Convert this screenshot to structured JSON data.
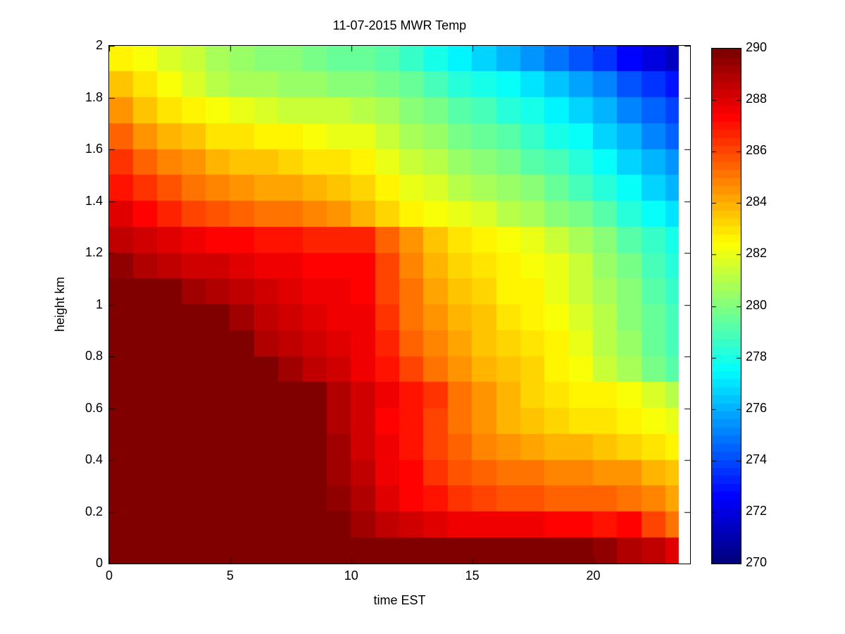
{
  "figure": {
    "background": "#ffffff",
    "text_color": "#000000",
    "axis_color": "#000000"
  },
  "chart_data": {
    "type": "heatmap",
    "title": "11-07-2015 MWR Temp",
    "xlabel": "time EST",
    "ylabel": "height km",
    "x_range": [
      0,
      24
    ],
    "x_data_end": 23.5,
    "y_range": [
      0,
      2
    ],
    "xticks": [
      0,
      5,
      10,
      15,
      20
    ],
    "xtick_labels": [
      "0",
      "5",
      "10",
      "15",
      "20"
    ],
    "yticks": [
      0,
      0.2,
      0.4,
      0.6,
      0.8,
      1,
      1.2,
      1.4,
      1.6,
      1.8,
      2
    ],
    "ytick_labels": [
      "0",
      "0.2",
      "0.4",
      "0.6",
      "0.8",
      "1",
      "1.2",
      "1.4",
      "1.6",
      "1.8",
      "2"
    ],
    "grid_lines": false,
    "colorbar": {
      "min": 270,
      "max": 290,
      "ticks": [
        290,
        288,
        286,
        284,
        282,
        280,
        278,
        276,
        274,
        272,
        270
      ],
      "tick_labels": [
        "290",
        "288",
        "286",
        "284",
        "282",
        "280",
        "278",
        "276",
        "274",
        "272",
        "270"
      ],
      "colormap": "jet",
      "levels": 64,
      "position": "right"
    },
    "grid": {
      "cols": 24,
      "rows": 20,
      "col_width_hours": 1,
      "row_height_km": 0.1,
      "note": "values[row][col]; row 0 = top layer (1.9-2.0 km), row 19 = surface (0-0.1 km); col j spans hour j to j+1, last column clipped at 23.5 h; units Kelvin"
    },
    "values": [
      [
        282.5,
        282.2,
        281.7,
        281.3,
        280.9,
        280.6,
        280.3,
        280.0,
        279.8,
        279.6,
        279.4,
        279.1,
        278.6,
        278.0,
        277.3,
        276.7,
        276.2,
        275.6,
        274.9,
        274.2,
        273.5,
        272.7,
        272.0,
        271.5
      ],
      [
        283.6,
        282.9,
        282.2,
        281.6,
        281.2,
        280.9,
        280.7,
        280.5,
        280.4,
        280.3,
        280.2,
        279.9,
        279.4,
        278.9,
        278.4,
        278.0,
        277.5,
        277.0,
        276.4,
        275.8,
        275.1,
        274.3,
        273.5,
        272.9
      ],
      [
        284.5,
        283.7,
        283.1,
        282.7,
        282.4,
        281.9,
        281.7,
        281.5,
        281.4,
        281.3,
        281.1,
        280.7,
        280.2,
        279.7,
        279.2,
        278.8,
        278.4,
        277.9,
        277.3,
        276.7,
        276.0,
        275.2,
        274.4,
        273.8
      ],
      [
        285.4,
        284.6,
        284.0,
        283.5,
        283.1,
        282.9,
        282.7,
        282.5,
        282.3,
        282.1,
        281.9,
        281.5,
        280.9,
        280.4,
        279.9,
        279.5,
        279.1,
        278.6,
        278.1,
        277.5,
        276.8,
        276.0,
        275.2,
        274.6
      ],
      [
        286.3,
        285.5,
        284.9,
        284.4,
        284.0,
        283.7,
        283.5,
        283.3,
        283.1,
        282.9,
        282.6,
        282.1,
        281.5,
        281.0,
        280.5,
        280.1,
        279.7,
        279.3,
        278.8,
        278.2,
        277.5,
        276.8,
        276.0,
        275.4
      ],
      [
        287.1,
        286.3,
        285.7,
        285.1,
        284.7,
        284.5,
        284.3,
        284.1,
        283.9,
        283.6,
        283.2,
        282.7,
        282.1,
        281.6,
        281.2,
        280.8,
        280.4,
        280.0,
        279.5,
        278.9,
        278.3,
        277.5,
        276.8,
        276.2
      ],
      [
        287.9,
        287.2,
        286.6,
        286.1,
        285.7,
        285.4,
        285.2,
        285.0,
        284.7,
        284.4,
        284.0,
        283.4,
        282.8,
        282.4,
        282.0,
        281.6,
        281.2,
        280.8,
        280.3,
        279.8,
        279.1,
        278.4,
        277.6,
        277.0
      ],
      [
        288.5,
        288.2,
        287.9,
        287.6,
        287.4,
        287.2,
        287.0,
        286.9,
        286.8,
        286.8,
        286.6,
        285.6,
        284.5,
        283.6,
        283.1,
        282.7,
        282.3,
        281.9,
        281.4,
        280.8,
        280.1,
        279.3,
        278.5,
        277.9
      ],
      [
        289.4,
        289.0,
        288.7,
        288.4,
        288.2,
        288.0,
        287.8,
        287.6,
        287.4,
        287.3,
        287.2,
        286.0,
        284.8,
        284.0,
        283.4,
        283.0,
        282.7,
        282.3,
        281.9,
        281.3,
        280.6,
        279.8,
        279.0,
        278.4
      ],
      [
        290.0,
        290.0,
        290.0,
        289.3,
        288.9,
        288.6,
        288.3,
        288.0,
        287.8,
        287.6,
        287.4,
        286.1,
        285.0,
        284.2,
        283.6,
        283.2,
        282.8,
        282.5,
        282.1,
        281.5,
        280.8,
        280.0,
        279.2,
        278.6
      ],
      [
        290.0,
        290.0,
        290.0,
        290.0,
        290.0,
        289.2,
        288.7,
        288.3,
        288.0,
        287.8,
        287.5,
        286.3,
        285.2,
        284.5,
        283.9,
        283.5,
        283.1,
        282.7,
        282.3,
        281.7,
        281.0,
        280.2,
        279.4,
        278.8
      ],
      [
        290.0,
        290.0,
        290.0,
        290.0,
        290.0,
        290.0,
        289.0,
        288.6,
        288.2,
        287.9,
        287.6,
        286.6,
        285.5,
        284.8,
        284.2,
        283.7,
        283.3,
        282.9,
        282.5,
        281.9,
        281.2,
        280.4,
        279.6,
        279.0
      ],
      [
        290.0,
        290.0,
        290.0,
        290.0,
        290.0,
        290.0,
        290.0,
        289.2,
        288.7,
        288.2,
        287.8,
        287.0,
        286.0,
        285.1,
        284.5,
        284.0,
        283.6,
        283.2,
        282.8,
        282.2,
        281.5,
        280.7,
        279.9,
        279.3
      ],
      [
        290.0,
        290.0,
        290.0,
        290.0,
        290.0,
        290.0,
        290.0,
        290.0,
        290.0,
        289.0,
        288.3,
        287.6,
        287.0,
        286.3,
        285.3,
        284.4,
        283.9,
        283.4,
        283.0,
        282.8,
        282.6,
        282.2,
        281.6,
        281.0
      ],
      [
        290.0,
        290.0,
        290.0,
        290.0,
        290.0,
        290.0,
        290.0,
        290.0,
        290.0,
        289.0,
        288.2,
        287.4,
        287.0,
        286.0,
        285.0,
        284.4,
        284.0,
        283.6,
        283.3,
        283.1,
        283.0,
        282.8,
        282.4,
        282.0
      ],
      [
        290.0,
        290.0,
        290.0,
        290.0,
        290.0,
        290.0,
        290.0,
        290.0,
        290.0,
        289.2,
        288.4,
        287.5,
        287.0,
        286.2,
        285.4,
        284.8,
        284.5,
        284.2,
        284.0,
        283.8,
        283.6,
        283.3,
        283.0,
        282.7
      ],
      [
        290.0,
        290.0,
        290.0,
        290.0,
        290.0,
        290.0,
        290.0,
        290.0,
        290.0,
        289.3,
        288.6,
        287.8,
        287.2,
        286.4,
        285.8,
        285.4,
        285.2,
        285.0,
        284.9,
        284.8,
        284.6,
        284.4,
        284.0,
        283.6
      ],
      [
        290.0,
        290.0,
        290.0,
        290.0,
        290.0,
        290.0,
        290.0,
        290.0,
        290.0,
        289.4,
        288.8,
        288.0,
        287.4,
        287.0,
        286.4,
        286.0,
        285.8,
        285.7,
        285.6,
        285.5,
        285.4,
        285.2,
        284.8,
        284.2
      ],
      [
        290.0,
        290.0,
        290.0,
        290.0,
        290.0,
        290.0,
        290.0,
        290.0,
        290.0,
        290.0,
        289.2,
        288.6,
        288.2,
        288.0,
        287.8,
        287.8,
        287.6,
        287.5,
        287.4,
        287.2,
        287.0,
        287.2,
        286.2,
        285.3
      ],
      [
        290.0,
        290.0,
        290.0,
        290.0,
        290.0,
        290.0,
        290.0,
        290.0,
        290.0,
        290.0,
        290.0,
        290.0,
        290.0,
        290.0,
        290.0,
        290.0,
        290.0,
        290.0,
        290.0,
        290.0,
        289.4,
        289.0,
        288.6,
        288.0
      ]
    ]
  }
}
